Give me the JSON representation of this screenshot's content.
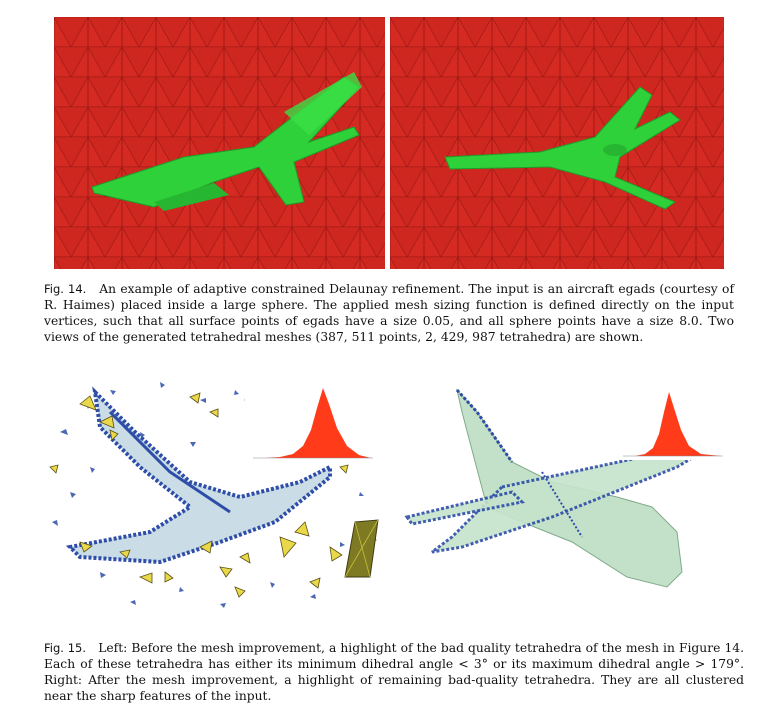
{
  "figure14": {
    "label": "Fig. 14.",
    "caption": "An example of adaptive constrained Delaunay refinement. The input is an aircraft egads (courtesy of R. Haimes) placed inside a large sphere. The applied mesh sizing function is defined directly on the input vertices, such that all surface points of egads have a size 0.05, and all sphere points have a size 8.0. Two views of the generated tetrahedral meshes (387, 511 points, 2, 429, 987 tetrahedra) are shown.",
    "colors": {
      "mesh": "#d42a22",
      "mesh_dark": "#b81d18",
      "aircraft": "#2fd13a"
    }
  },
  "figure15": {
    "label": "Fig. 15.",
    "caption": "Left: Before the mesh improvement, a highlight of the bad quality tetrahedra of the mesh in Figure 14. Each of these tetrahedra has either its minimum dihedral angle < 3° or its maximum dihedral angle > 179°. Right: After the mesh improvement, a highlight of remaining bad-quality tetrahedra. They are all clustered near the sharp features of the input.",
    "colors": {
      "tets": "#2d4da8",
      "bad_tets": "#e8d84a",
      "aircraft": "#b9dcc0",
      "histogram": "#ff3b1a"
    }
  }
}
